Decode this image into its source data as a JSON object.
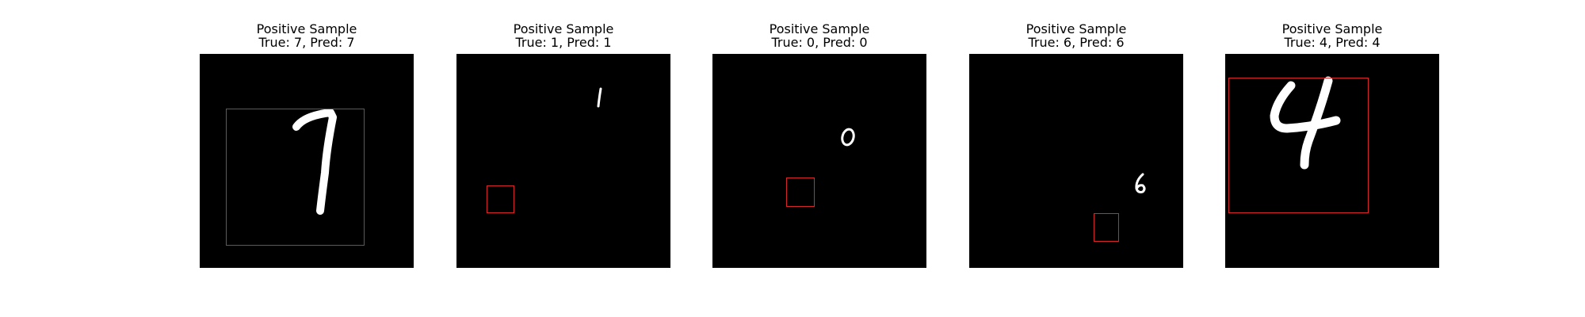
{
  "panels": [
    {
      "title": "Positive Sample",
      "subtitle": "True: 7, Pred: 7",
      "digit": "7"
    },
    {
      "title": "Positive Sample",
      "subtitle": "True: 1, Pred: 1",
      "digit": "1"
    },
    {
      "title": "Positive Sample",
      "subtitle": "True: 0, Pred: 0",
      "digit": "0"
    },
    {
      "title": "Positive Sample",
      "subtitle": "True: 6, Pred: 6",
      "digit": "6"
    },
    {
      "title": "Positive Sample",
      "subtitle": "True: 4, Pred: 4",
      "digit": "4"
    }
  ],
  "colors": {
    "background": "#ffffff",
    "image": "#000000",
    "digit": "#ffffff",
    "box": "#d62728"
  }
}
